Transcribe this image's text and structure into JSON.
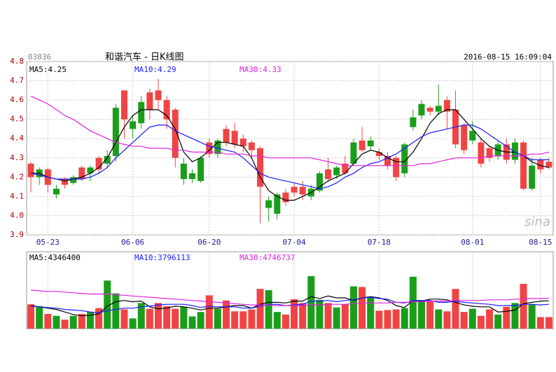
{
  "chart_data": [
    {
      "type": "candlestick",
      "code": "03836",
      "title": "和谐汽车 - 日K线图",
      "datetime": "2016-08-15 16:09:04",
      "watermark": "sina",
      "categories": [
        null,
        null,
        "05-23",
        null,
        null,
        null,
        null,
        null,
        null,
        null,
        null,
        null,
        "06-06",
        null,
        null,
        null,
        null,
        null,
        null,
        null,
        null,
        "06-20",
        null,
        null,
        null,
        null,
        null,
        null,
        null,
        null,
        null,
        "07-04",
        null,
        null,
        null,
        null,
        null,
        null,
        null,
        null,
        null,
        "07-18",
        null,
        null,
        null,
        null,
        null,
        null,
        null,
        null,
        null,
        null,
        "08-01",
        null,
        null,
        null,
        null,
        null,
        null,
        null,
        "08-15",
        null
      ],
      "open": [
        4.2,
        4.24,
        4.16,
        4.14,
        4.16,
        4.2,
        4.19,
        4.25,
        4.24,
        4.31,
        4.56,
        4.5,
        4.49,
        4.59,
        4.55,
        4.6,
        4.5,
        4.3,
        4.27,
        4.22,
        4.3,
        4.32,
        4.39,
        4.38,
        4.37,
        4.36,
        4.34,
        4.15,
        4.08,
        4.11,
        4.07,
        4.12,
        4.11,
        4.14,
        4.22,
        4.19,
        4.25,
        4.22,
        4.38,
        4.34,
        4.39,
        4.31,
        4.26,
        4.2,
        4.37,
        4.51,
        4.58,
        4.54,
        4.57,
        4.54,
        4.37,
        4.34,
        4.44,
        4.27,
        4.3,
        4.37,
        4.29,
        4.38,
        4.14,
        4.26,
        4.24,
        4.25
      ],
      "high": [
        4.28,
        4.25,
        4.25,
        4.16,
        4.2,
        4.21,
        4.26,
        4.26,
        4.31,
        4.34,
        4.58,
        4.65,
        4.52,
        4.62,
        4.66,
        4.71,
        4.62,
        4.56,
        4.3,
        4.24,
        4.31,
        4.4,
        4.4,
        4.47,
        4.48,
        4.42,
        4.39,
        4.36,
        4.1,
        4.12,
        4.14,
        4.17,
        4.18,
        4.16,
        4.23,
        4.3,
        4.26,
        4.31,
        4.4,
        4.46,
        4.41,
        4.35,
        4.33,
        4.31,
        4.38,
        4.55,
        4.6,
        4.57,
        4.68,
        4.62,
        4.65,
        4.48,
        4.49,
        4.4,
        4.36,
        4.39,
        4.4,
        4.4,
        4.39,
        4.3,
        4.3,
        4.3
      ],
      "low": [
        4.12,
        4.16,
        4.12,
        4.09,
        4.14,
        4.16,
        4.18,
        4.18,
        4.22,
        4.25,
        4.28,
        4.4,
        4.4,
        4.45,
        4.5,
        4.55,
        4.45,
        4.25,
        4.16,
        4.17,
        4.17,
        4.3,
        4.3,
        4.36,
        4.35,
        4.33,
        4.3,
        3.96,
        3.97,
        3.98,
        4.05,
        4.1,
        4.08,
        4.08,
        4.12,
        4.18,
        4.19,
        4.21,
        4.26,
        4.33,
        4.34,
        4.29,
        4.24,
        4.18,
        4.2,
        4.44,
        4.5,
        4.52,
        4.52,
        4.45,
        4.35,
        4.32,
        4.37,
        4.25,
        4.28,
        4.29,
        4.27,
        4.27,
        4.13,
        4.13,
        4.22,
        4.24
      ],
      "close": [
        4.27,
        4.2,
        4.24,
        4.11,
        4.19,
        4.17,
        4.25,
        4.22,
        4.3,
        4.27,
        4.31,
        4.65,
        4.45,
        4.48,
        4.64,
        4.65,
        4.6,
        4.55,
        4.19,
        4.19,
        4.18,
        4.38,
        4.32,
        4.45,
        4.44,
        4.4,
        4.38,
        4.35,
        4.04,
        4.01,
        4.12,
        4.15,
        4.15,
        4.1,
        4.13,
        4.24,
        4.21,
        4.27,
        4.27,
        4.39,
        4.36,
        4.33,
        4.31,
        4.3,
        4.22,
        4.46,
        4.52,
        4.56,
        4.54,
        4.6,
        4.55,
        4.47,
        4.39,
        4.38,
        4.35,
        4.31,
        4.37,
        4.29,
        4.38,
        4.14,
        4.29,
        4.28
      ],
      "up_color": "#f04444",
      "down_color": "#1a9e1a",
      "series": [
        {
          "name": "MA5:4.25",
          "color": "#000000",
          "values": [
            4.22,
            4.22,
            4.2,
            4.19,
            4.18,
            4.19,
            4.2,
            4.22,
            4.25,
            4.3,
            4.38,
            4.46,
            4.52,
            4.55,
            4.55,
            4.55,
            4.52,
            4.45,
            4.33,
            4.28,
            4.3,
            4.34,
            4.38,
            4.38,
            4.37,
            4.36,
            4.3,
            4.2,
            4.13,
            4.1,
            4.08,
            4.08,
            4.1,
            4.12,
            4.15,
            4.18,
            4.2,
            4.22,
            4.27,
            4.32,
            4.34,
            4.33,
            4.3,
            4.28,
            4.28,
            4.33,
            4.4,
            4.48,
            4.53,
            4.55,
            4.55,
            4.5,
            4.45,
            4.4,
            4.36,
            4.34,
            4.33,
            4.33,
            4.31,
            4.28,
            4.26,
            4.25
          ]
        },
        {
          "name": "MA10:4.29",
          "color": "#1a1aff",
          "values": [
            4.22,
            4.21,
            4.2,
            4.19,
            4.19,
            4.19,
            4.19,
            4.2,
            4.22,
            4.25,
            4.3,
            4.34,
            4.38,
            4.42,
            4.46,
            4.47,
            4.47,
            4.44,
            4.42,
            4.4,
            4.38,
            4.36,
            4.35,
            4.34,
            4.33,
            4.3,
            4.26,
            4.22,
            4.2,
            4.19,
            4.18,
            4.17,
            4.16,
            4.15,
            4.14,
            4.15,
            4.17,
            4.2,
            4.22,
            4.25,
            4.27,
            4.28,
            4.3,
            4.32,
            4.35,
            4.38,
            4.41,
            4.43,
            4.44,
            4.45,
            4.46,
            4.47,
            4.47,
            4.45,
            4.42,
            4.39,
            4.36,
            4.33,
            4.31,
            4.29,
            4.29,
            4.29
          ]
        },
        {
          "name": "MA30:4.33",
          "color": "#e020e0",
          "values": [
            4.62,
            4.6,
            4.58,
            4.55,
            4.52,
            4.5,
            4.47,
            4.44,
            4.42,
            4.4,
            4.38,
            4.37,
            4.36,
            4.36,
            4.35,
            4.35,
            4.35,
            4.34,
            4.34,
            4.33,
            4.33,
            4.33,
            4.33,
            4.32,
            4.32,
            4.32,
            4.31,
            4.31,
            4.3,
            4.3,
            4.3,
            4.3,
            4.3,
            4.3,
            4.29,
            4.28,
            4.27,
            4.26,
            4.26,
            4.26,
            4.26,
            4.26,
            4.26,
            4.26,
            4.26,
            4.26,
            4.27,
            4.27,
            4.28,
            4.29,
            4.3,
            4.3,
            4.3,
            4.3,
            4.31,
            4.31,
            4.31,
            4.31,
            4.31,
            4.32,
            4.32,
            4.33
          ]
        }
      ],
      "ylim": [
        3.9,
        4.8
      ],
      "yticks": [
        4.8,
        4.7,
        4.6,
        4.5,
        4.4,
        4.3,
        4.2,
        4.1,
        {
          "value": 4,
          "label": "4.0"
        },
        3.9
      ],
      "grid": true
    },
    {
      "type": "bar",
      "values": [
        3800000,
        3500000,
        2300000,
        2000000,
        1400000,
        2000000,
        2300000,
        2600000,
        3200000,
        7500000,
        5500000,
        3000000,
        1600000,
        4000000,
        3100000,
        4000000,
        3500000,
        3100000,
        3400000,
        1900000,
        2600000,
        5200000,
        3100000,
        4400000,
        2700000,
        2700000,
        3000000,
        6200000,
        6000000,
        2600000,
        2200000,
        4600000,
        4000000,
        8200000,
        4500000,
        4000000,
        3300000,
        3800000,
        6600000,
        6500000,
        4800000,
        2800000,
        2900000,
        3000000,
        3200000,
        8100000,
        4400000,
        4200000,
        3000000,
        2700000,
        6200000,
        2600000,
        3100000,
        2000000,
        3000000,
        2200000,
        3400000,
        4000000,
        7000000,
        3800000,
        1800000,
        1800000
      ],
      "series": [
        {
          "name": "MA5:4346400",
          "color": "#000000",
          "values": [
            3600000,
            3400000,
            3200000,
            3000000,
            2600000,
            2200000,
            2000000,
            2100000,
            2300000,
            3500000,
            4200000,
            4400000,
            4200000,
            4300000,
            3400000,
            3100000,
            3200000,
            3500000,
            3400000,
            3200000,
            2900000,
            3200000,
            3200000,
            3400000,
            3600000,
            3600000,
            3200000,
            3800000,
            4100000,
            4100000,
            4000000,
            4300000,
            4300000,
            5000000,
            4700000,
            5100000,
            4800000,
            4800000,
            4400000,
            4800000,
            5000000,
            4800000,
            4400000,
            3600000,
            3300000,
            4400000,
            4300000,
            4600000,
            4600000,
            4500000,
            4100000,
            3700000,
            3500000,
            3400000,
            3400000,
            2600000,
            2700000,
            2900000,
            3900000,
            4100000,
            4300000,
            4346400
          ]
        },
        {
          "name": "MA10:3796113",
          "color": "#1a1aff",
          "values": [
            3500000,
            3400000,
            3300000,
            3200000,
            3000000,
            2900000,
            2800000,
            2600000,
            2500000,
            2800000,
            3000000,
            3200000,
            3200000,
            3400000,
            3500000,
            3700000,
            3800000,
            3800000,
            3800000,
            3600000,
            3300000,
            3500000,
            3400000,
            3400000,
            3400000,
            3200000,
            3200000,
            3500000,
            3800000,
            3800000,
            3600000,
            3700000,
            3800000,
            4300000,
            4300000,
            4400000,
            4200000,
            4400000,
            4500000,
            4800000,
            4900000,
            4700000,
            4600000,
            4100000,
            4000000,
            4400000,
            4400000,
            4400000,
            4100000,
            4100000,
            4300000,
            4100000,
            4000000,
            3900000,
            3800000,
            3600000,
            3600000,
            3600000,
            3800000,
            3800000,
            3700000,
            3796113
          ]
        },
        {
          "name": "MA30:4746737",
          "color": "#e020e0",
          "values": [
            6000000,
            5900000,
            5800000,
            5800000,
            5700000,
            5600000,
            5500000,
            5400000,
            5400000,
            5400000,
            5300000,
            5200000,
            5100000,
            5000000,
            4900000,
            4800000,
            4700000,
            4600000,
            4500000,
            4400000,
            4300000,
            4200000,
            4100000,
            4000000,
            3900000,
            3800000,
            3700000,
            3700000,
            3700000,
            3600000,
            3600000,
            3600000,
            3600000,
            3700000,
            3700000,
            3800000,
            3800000,
            3800000,
            3900000,
            4000000,
            4000000,
            4000000,
            4000000,
            4100000,
            4100000,
            4200000,
            4200000,
            4300000,
            4300000,
            4300000,
            4400000,
            4400000,
            4400000,
            4400000,
            4500000,
            4500000,
            4500000,
            4600000,
            4600000,
            4700000,
            4700000,
            4746737
          ]
        }
      ],
      "ylim": [
        0,
        12000000
      ]
    }
  ]
}
